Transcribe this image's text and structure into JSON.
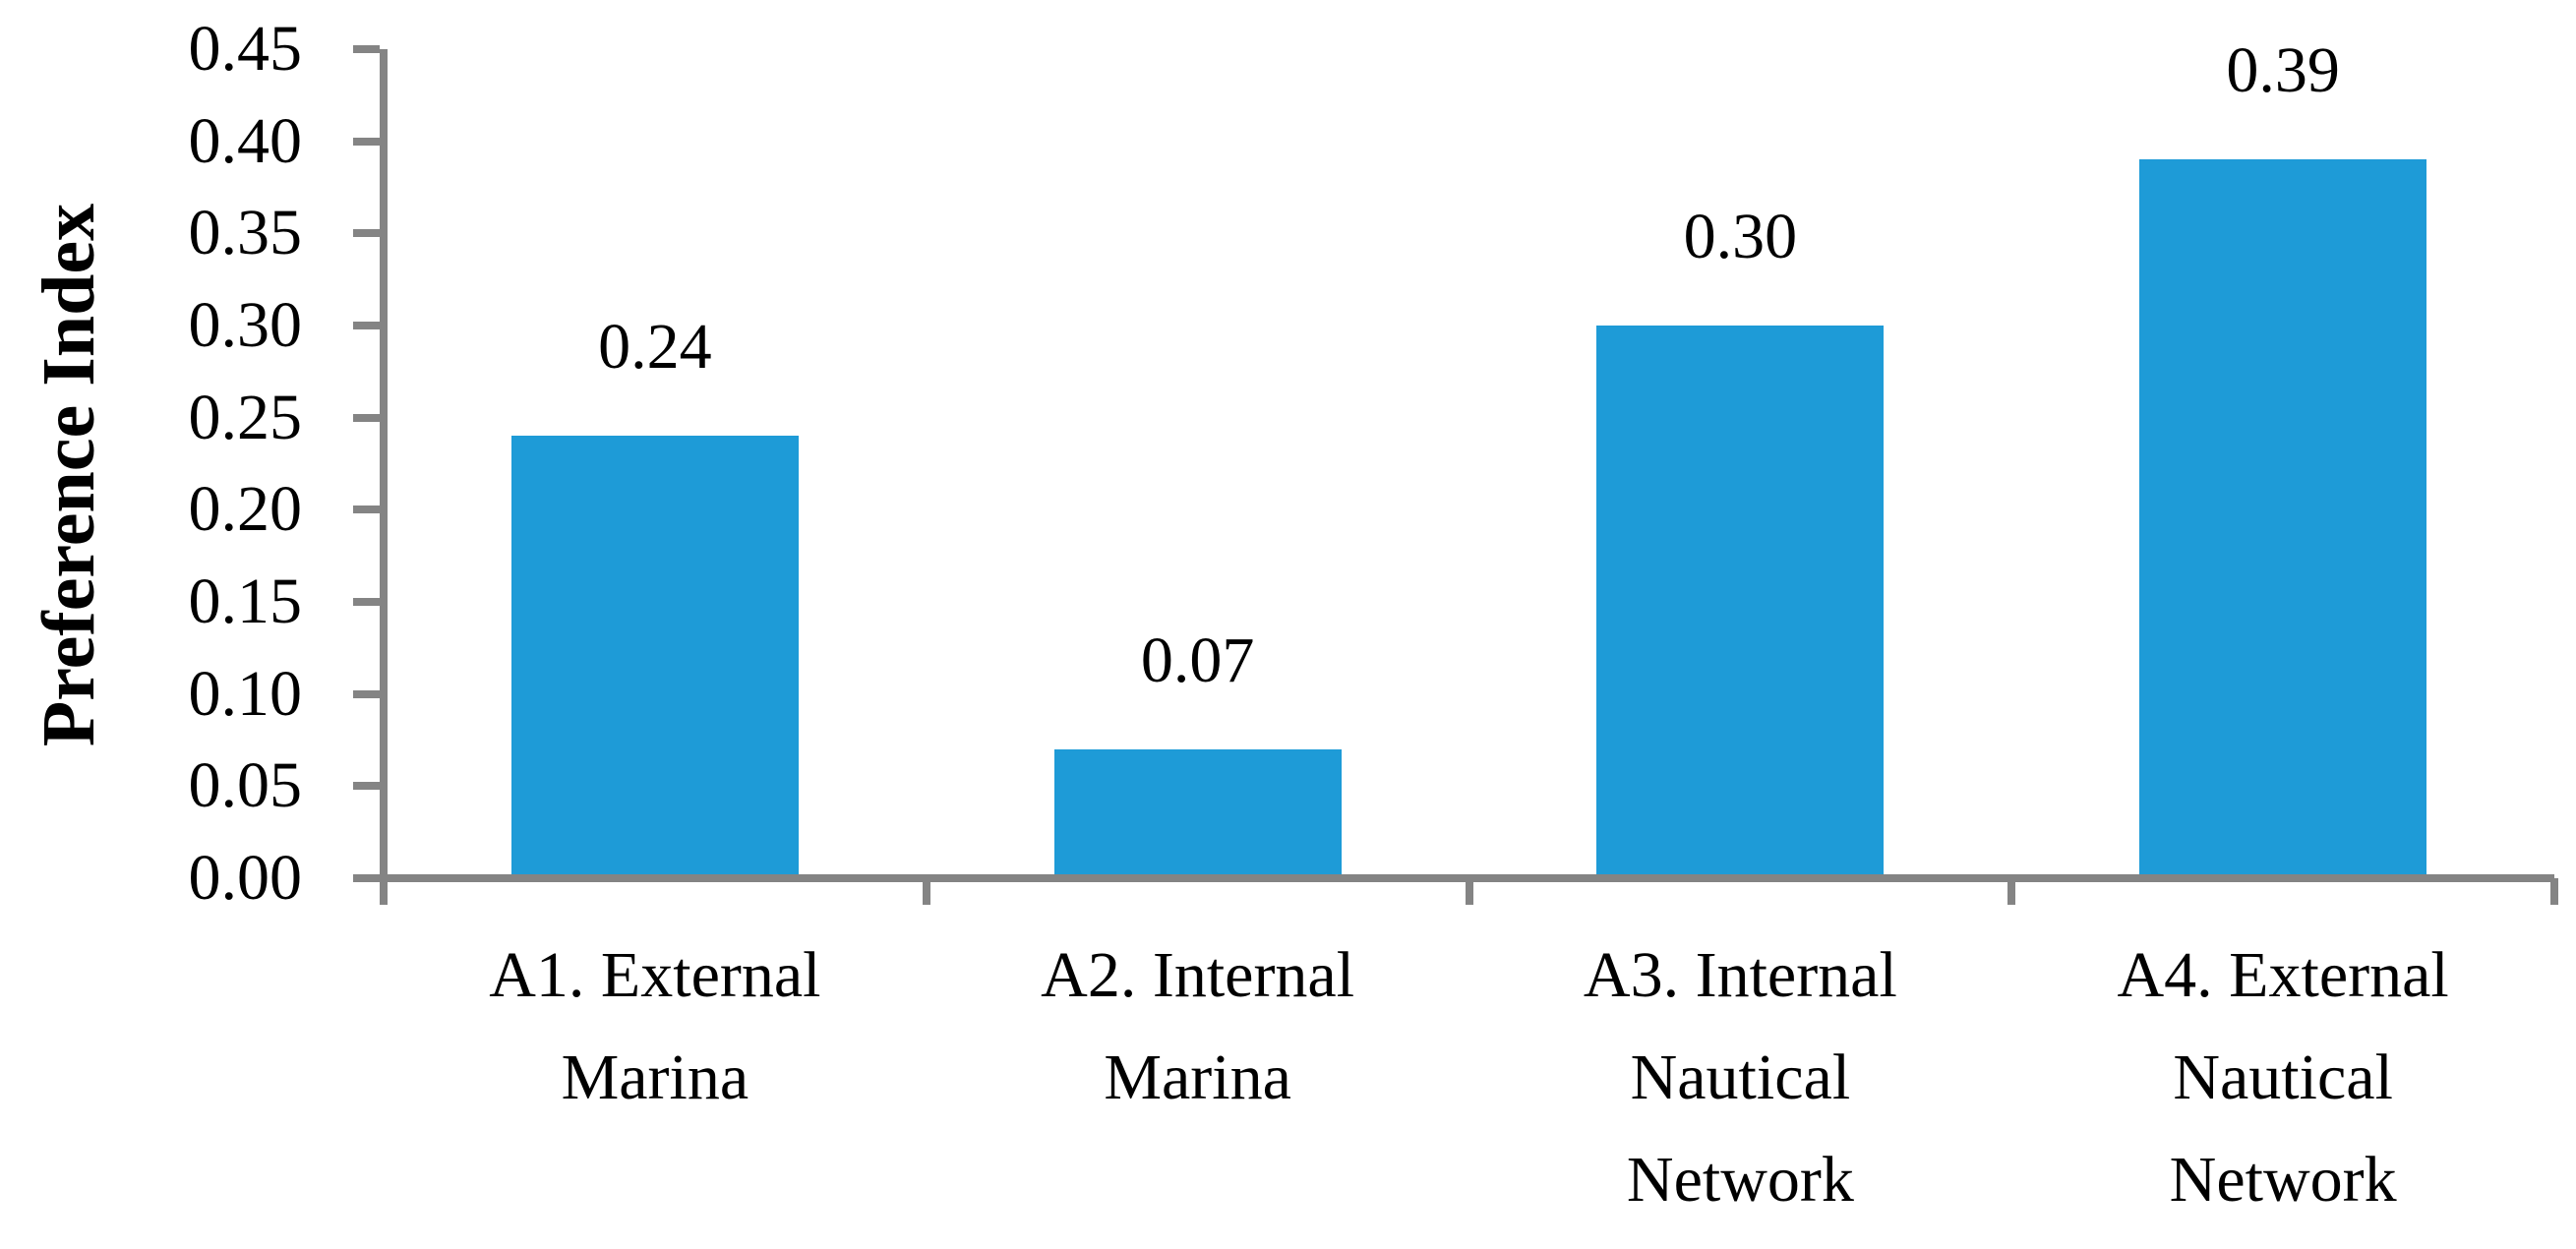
{
  "chart_data": {
    "type": "bar",
    "title": "",
    "ylabel": "Preference Index",
    "xlabel": "",
    "categories": [
      "A1. External Marina",
      "A2. Internal Marina",
      "A3. Internal Nautical Network",
      "A4. External Nautical Network"
    ],
    "values": [
      0.24,
      0.07,
      0.3,
      0.39
    ],
    "value_labels": [
      "0.24",
      "0.07",
      "0.30",
      "0.39"
    ],
    "ylim": [
      0.0,
      0.45
    ],
    "ytick_step": 0.05,
    "ytick_labels": [
      "0.00",
      "0.05",
      "0.10",
      "0.15",
      "0.20",
      "0.25",
      "0.30",
      "0.35",
      "0.40",
      "0.45"
    ],
    "grid": "off",
    "legend": "none",
    "bar_color": "#1E9BD7",
    "axis_color": "#848484",
    "text_color": "#000000",
    "background_color": "#FFFFFF"
  }
}
